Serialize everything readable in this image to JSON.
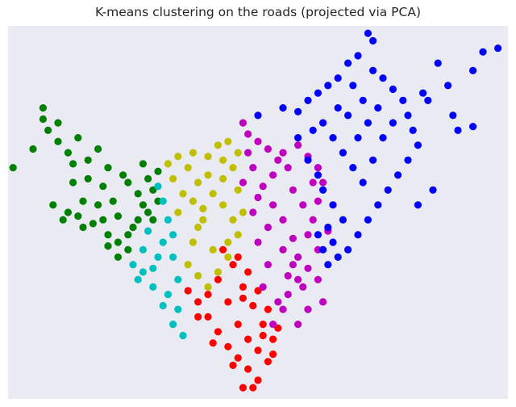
{
  "chart_data": {
    "type": "scatter",
    "title": "K-means clustering on the roads (projected via PCA)",
    "xlabel": "",
    "ylabel": "",
    "xlim": [
      0,
      100
    ],
    "ylim": [
      0,
      100
    ],
    "grid": false,
    "background": "#eaeaf2",
    "show_ticks": false,
    "series": [
      {
        "color": "#008000",
        "points": [
          [
            1,
            62
          ],
          [
            5,
            67
          ],
          [
            8,
            72
          ],
          [
            7,
            75
          ],
          [
            7,
            78
          ],
          [
            10,
            74
          ],
          [
            10,
            69
          ],
          [
            14,
            70
          ],
          [
            18,
            67
          ],
          [
            16,
            64
          ],
          [
            13,
            58
          ],
          [
            9,
            52
          ],
          [
            12,
            50
          ],
          [
            17,
            47
          ],
          [
            20,
            41
          ],
          [
            22,
            42
          ],
          [
            25,
            46
          ],
          [
            28,
            50
          ],
          [
            26,
            55
          ],
          [
            23,
            60
          ],
          [
            21,
            53
          ],
          [
            19,
            57
          ],
          [
            15,
            53
          ],
          [
            14,
            49
          ],
          [
            11,
            48
          ],
          [
            24,
            44
          ],
          [
            27,
            52
          ],
          [
            29,
            56
          ],
          [
            30,
            61
          ],
          [
            27,
            63
          ],
          [
            24,
            58
          ],
          [
            22,
            49
          ],
          [
            20,
            44
          ],
          [
            18,
            52
          ],
          [
            16,
            59
          ],
          [
            13,
            63
          ],
          [
            12,
            66
          ],
          [
            20,
            62
          ],
          [
            28,
            59
          ],
          [
            26,
            48
          ],
          [
            22,
            38
          ],
          [
            24,
            40
          ],
          [
            19,
            48
          ],
          [
            15,
            46
          ],
          [
            30,
            53
          ],
          [
            29,
            48
          ]
        ]
      },
      {
        "color": "#00bfbf",
        "points": [
          [
            30,
            57
          ],
          [
            31,
            53
          ],
          [
            28,
            45
          ],
          [
            27,
            40
          ],
          [
            25,
            36
          ],
          [
            26,
            32
          ],
          [
            29,
            30
          ],
          [
            32,
            28
          ],
          [
            34,
            24
          ],
          [
            33,
            20
          ],
          [
            35,
            17
          ],
          [
            31,
            25
          ],
          [
            29,
            35
          ],
          [
            31,
            42
          ],
          [
            32,
            48
          ],
          [
            33,
            38
          ],
          [
            34,
            32
          ],
          [
            30,
            38
          ],
          [
            27,
            34
          ],
          [
            33,
            44
          ]
        ]
      },
      {
        "color": "#bfbf00",
        "points": [
          [
            32,
            63
          ],
          [
            34,
            65
          ],
          [
            37,
            66
          ],
          [
            40,
            65
          ],
          [
            42,
            68
          ],
          [
            44,
            69
          ],
          [
            46,
            66
          ],
          [
            45,
            62
          ],
          [
            43,
            59
          ],
          [
            41,
            55
          ],
          [
            39,
            51
          ],
          [
            38,
            46
          ],
          [
            37,
            42
          ],
          [
            36,
            36
          ],
          [
            38,
            33
          ],
          [
            40,
            30
          ],
          [
            42,
            34
          ],
          [
            44,
            38
          ],
          [
            46,
            44
          ],
          [
            45,
            48
          ],
          [
            43,
            52
          ],
          [
            40,
            60
          ],
          [
            38,
            58
          ],
          [
            35,
            55
          ],
          [
            33,
            59
          ],
          [
            36,
            62
          ],
          [
            39,
            48
          ],
          [
            41,
            40
          ],
          [
            37,
            53
          ],
          [
            34,
            50
          ],
          [
            43,
            64
          ],
          [
            46,
            56
          ],
          [
            44,
            42
          ],
          [
            47,
            50
          ]
        ]
      },
      {
        "color": "#ff0000",
        "points": [
          [
            36,
            29
          ],
          [
            38,
            26
          ],
          [
            40,
            22
          ],
          [
            42,
            18
          ],
          [
            44,
            14
          ],
          [
            46,
            11
          ],
          [
            48,
            8
          ],
          [
            50,
            5
          ],
          [
            47,
            3
          ],
          [
            52,
            10
          ],
          [
            53,
            16
          ],
          [
            51,
            20
          ],
          [
            49,
            25
          ],
          [
            47,
            30
          ],
          [
            45,
            36
          ],
          [
            43,
            40
          ],
          [
            42,
            32
          ],
          [
            44,
            26
          ],
          [
            46,
            20
          ],
          [
            48,
            16
          ],
          [
            50,
            13
          ],
          [
            54,
            19
          ],
          [
            52,
            24
          ],
          [
            50,
            29
          ],
          [
            48,
            34
          ],
          [
            46,
            38
          ],
          [
            40,
            28
          ],
          [
            38,
            22
          ],
          [
            41,
            15
          ],
          [
            45,
            9
          ],
          [
            49,
            3
          ],
          [
            53,
            12
          ],
          [
            51,
            17
          ],
          [
            47,
            27
          ]
        ]
      },
      {
        "color": "#bf00bf",
        "points": [
          [
            47,
            74
          ],
          [
            48,
            71
          ],
          [
            50,
            69
          ],
          [
            52,
            67
          ],
          [
            55,
            66
          ],
          [
            58,
            68
          ],
          [
            60,
            65
          ],
          [
            62,
            62
          ],
          [
            63,
            58
          ],
          [
            62,
            53
          ],
          [
            61,
            48
          ],
          [
            60,
            44
          ],
          [
            62,
            40
          ],
          [
            60,
            35
          ],
          [
            58,
            32
          ],
          [
            56,
            28
          ],
          [
            55,
            24
          ],
          [
            53,
            20
          ],
          [
            54,
            26
          ],
          [
            56,
            33
          ],
          [
            58,
            38
          ],
          [
            57,
            43
          ],
          [
            55,
            48
          ],
          [
            53,
            52
          ],
          [
            51,
            57
          ],
          [
            49,
            62
          ],
          [
            48,
            66
          ],
          [
            47,
            58
          ],
          [
            49,
            50
          ],
          [
            50,
            42
          ],
          [
            52,
            36
          ],
          [
            51,
            30
          ],
          [
            57,
            56
          ],
          [
            59,
            52
          ],
          [
            61,
            58
          ],
          [
            56,
            62
          ],
          [
            53,
            60
          ],
          [
            55,
            40
          ],
          [
            57,
            36
          ],
          [
            59,
            30
          ],
          [
            64,
            45
          ],
          [
            62,
            32
          ],
          [
            63,
            26
          ],
          [
            60,
            24
          ],
          [
            58,
            20
          ],
          [
            54,
            64
          ],
          [
            50,
            54
          ],
          [
            52,
            46
          ]
        ]
      },
      {
        "color": "#0000ff",
        "points": [
          [
            50,
            76
          ],
          [
            55,
            78
          ],
          [
            58,
            77
          ],
          [
            60,
            80
          ],
          [
            62,
            82
          ],
          [
            64,
            84
          ],
          [
            66,
            86
          ],
          [
            68,
            90
          ],
          [
            70,
            92
          ],
          [
            73,
            88
          ],
          [
            75,
            86
          ],
          [
            77,
            83
          ],
          [
            79,
            80
          ],
          [
            80,
            76
          ],
          [
            81,
            72
          ],
          [
            82,
            68
          ],
          [
            80,
            64
          ],
          [
            78,
            60
          ],
          [
            76,
            56
          ],
          [
            74,
            52
          ],
          [
            72,
            48
          ],
          [
            70,
            44
          ],
          [
            68,
            40
          ],
          [
            66,
            38
          ],
          [
            64,
            36
          ],
          [
            63,
            40
          ],
          [
            64,
            46
          ],
          [
            65,
            52
          ],
          [
            63,
            56
          ],
          [
            62,
            60
          ],
          [
            60,
            64
          ],
          [
            58,
            70
          ],
          [
            61,
            72
          ],
          [
            63,
            74
          ],
          [
            65,
            70
          ],
          [
            67,
            66
          ],
          [
            69,
            62
          ],
          [
            71,
            58
          ],
          [
            73,
            64
          ],
          [
            75,
            70
          ],
          [
            77,
            74
          ],
          [
            74,
            78
          ],
          [
            72,
            74
          ],
          [
            70,
            70
          ],
          [
            68,
            76
          ],
          [
            66,
            78
          ],
          [
            69,
            84
          ],
          [
            71,
            80
          ],
          [
            73,
            96
          ],
          [
            72,
            98
          ],
          [
            86,
            90
          ],
          [
            88,
            84
          ],
          [
            84,
            80
          ],
          [
            83,
            82
          ],
          [
            89,
            76
          ],
          [
            93,
            88
          ],
          [
            95,
            93
          ],
          [
            98,
            94
          ],
          [
            90,
            72
          ],
          [
            93,
            73
          ],
          [
            85,
            56
          ],
          [
            82,
            52
          ],
          [
            67,
            48
          ],
          [
            65,
            42
          ],
          [
            62,
            44
          ]
        ]
      }
    ]
  }
}
